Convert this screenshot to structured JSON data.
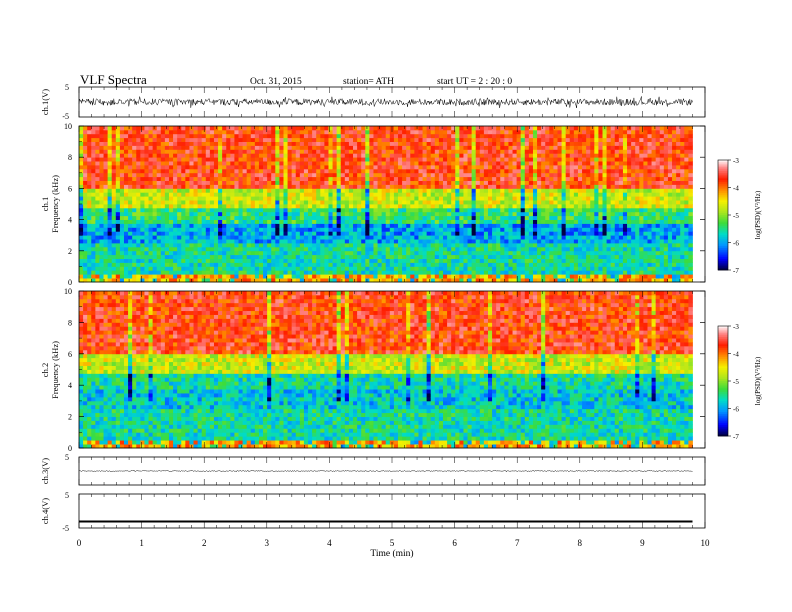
{
  "header": {
    "title": "VLF  Spectra",
    "date": "Oct. 31, 2015",
    "station": "station= ATH",
    "start": "start  UT  =   2 : 20 : 0"
  },
  "chart_data": [
    {
      "type": "line",
      "panel": "ch1-waveform",
      "ylabel": "ch.1(V)",
      "ylim": [
        -5,
        5
      ],
      "yticks": [
        "5",
        "-5"
      ],
      "xlim": [
        0,
        10
      ],
      "series": [
        {
          "values_range": [
            -2,
            2
          ]
        }
      ]
    },
    {
      "type": "heatmap",
      "panel": "ch1-spectrogram",
      "ylabel": [
        "ch.1",
        "Frequency  (kHz)"
      ],
      "ylim": [
        0,
        10
      ],
      "yticks": [
        "0",
        "2",
        "4",
        "6",
        "8",
        "10"
      ],
      "xlim": [
        0,
        10
      ],
      "data_end_min": 9.8,
      "colorbar": {
        "label": "log(PSD)(V²/Hz)",
        "range": [
          -7,
          -3
        ],
        "ticks": [
          "-3",
          "-4",
          "-5",
          "-6",
          "-7"
        ]
      },
      "frequency_bands": [
        {
          "from": 0,
          "to": 0.6,
          "level": -4.2
        },
        {
          "from": 0.6,
          "to": 2.5,
          "level": -5.6
        },
        {
          "from": 2.5,
          "to": 3.8,
          "level": -6.0
        },
        {
          "from": 3.8,
          "to": 4.7,
          "level": -5.4
        },
        {
          "from": 4.7,
          "to": 6.0,
          "level": -4.7
        },
        {
          "from": 6.0,
          "to": 10,
          "level": -3.7
        }
      ]
    },
    {
      "type": "heatmap",
      "panel": "ch2-spectrogram",
      "ylabel": [
        "ch.2",
        "Frequency  (kHz)"
      ],
      "ylim": [
        0,
        10
      ],
      "yticks": [
        "0",
        "2",
        "4",
        "6",
        "8",
        "10"
      ],
      "xlim": [
        0,
        10
      ],
      "data_end_min": 9.8,
      "colorbar": {
        "label": "log(PSD)(V²/Hz)",
        "range": [
          -7,
          -3
        ],
        "ticks": [
          "-3",
          "-4",
          "-5",
          "-6",
          "-7"
        ]
      },
      "frequency_bands": [
        {
          "from": 0,
          "to": 0.6,
          "level": -4.2
        },
        {
          "from": 0.6,
          "to": 2.5,
          "level": -5.6
        },
        {
          "from": 2.5,
          "to": 3.8,
          "level": -5.8
        },
        {
          "from": 3.8,
          "to": 4.8,
          "level": -5.6
        },
        {
          "from": 4.8,
          "to": 6.0,
          "level": -4.7
        },
        {
          "from": 6.0,
          "to": 10,
          "level": -3.7
        }
      ]
    },
    {
      "type": "line",
      "panel": "ch3-waveform",
      "ylabel": "ch.3(V)",
      "ylim": [
        -5,
        5
      ],
      "yticks": [
        "5",
        "-5"
      ],
      "xlim": [
        0,
        10
      ],
      "series": [
        {
          "values_range": [
            -0.3,
            0.3
          ]
        }
      ]
    },
    {
      "type": "line",
      "panel": "ch4-waveform",
      "ylabel": "ch.4(V)",
      "ylim": [
        -5,
        5
      ],
      "yticks": [
        "5",
        "-5"
      ],
      "xlim": [
        0,
        10
      ],
      "xlabel": "Time  (min)",
      "xticks": [
        "0",
        "1",
        "2",
        "3",
        "4",
        "5",
        "6",
        "7",
        "8",
        "9",
        "10"
      ],
      "series": [
        {
          "values_range": [
            -3.2,
            -2.8
          ]
        }
      ]
    }
  ],
  "colors": {
    "colormap": [
      "#000080",
      "#0000ff",
      "#00a0ff",
      "#00e0c0",
      "#40e060",
      "#a0e020",
      "#f0f000",
      "#ff8000",
      "#ff2000",
      "#ff8080",
      "#ffffff"
    ]
  }
}
